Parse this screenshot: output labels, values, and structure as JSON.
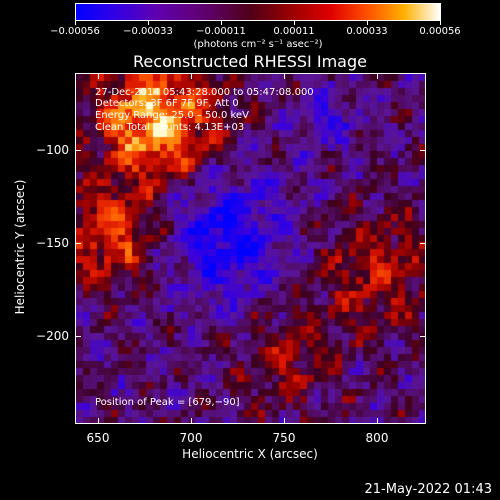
{
  "colorbar": {
    "tick_labels": [
      "−0.00056",
      "−0.00033",
      "−0.00011",
      "0.00011",
      "0.00033",
      "0.00056"
    ],
    "units": "(photons cm⁻² s⁻¹ asec⁻²)"
  },
  "title": "Reconstructed RHESSI Image",
  "info": {
    "time_range": "27‑Dec‑2014 05:43:28.000 to 05:47:08.000",
    "detectors": "Detectors: 3F 6F 7F 9F, Att 0",
    "energy": "Energy Range: 25.0 – 50.0 keV",
    "clean": "Clean   Total Counts: 4.13E+03",
    "peak": "Position of Peak = [679,−90]"
  },
  "axes": {
    "xlabel": "Heliocentric X (arcsec)",
    "ylabel": "Heliocentric Y (arcsec)",
    "x_ticks": [
      "650",
      "700",
      "750",
      "800"
    ],
    "y_ticks": [
      "−100",
      "−150",
      "−200"
    ]
  },
  "timestamp": "21‑May‑2022 01:43",
  "colors": {
    "background": "#000000",
    "foreground": "#ffffff",
    "colormap": [
      "#0000ff",
      "#6000b0",
      "#600070",
      "#500018",
      "#a00000",
      "#e00000",
      "#ff5000",
      "#ffb000",
      "#ffffff"
    ]
  }
}
